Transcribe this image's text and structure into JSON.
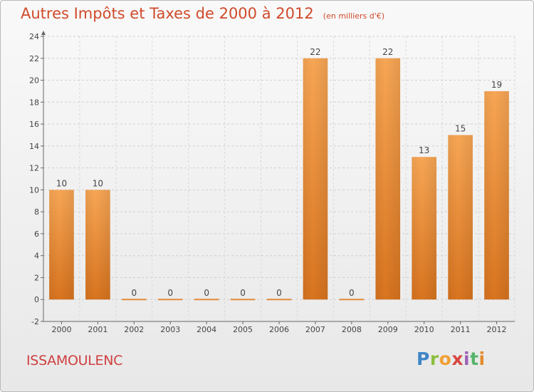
{
  "title": "Autres Impôts et Taxes de 2000 à 2012",
  "unit": "(en milliers d'€)",
  "commune": "ISSAMOULENC",
  "logo": "Proxiti",
  "colors": {
    "title": "#d04a2b",
    "bar_light": "#f7a655",
    "bar_dark": "#d8741f",
    "commune": "#cf3f3f"
  },
  "chart_data": {
    "type": "bar",
    "title": "Autres Impôts et Taxes de 2000 à 2012",
    "subtitle": "(en milliers d'€)",
    "categories": [
      "2000",
      "2001",
      "2002",
      "2003",
      "2004",
      "2005",
      "2006",
      "2007",
      "2008",
      "2009",
      "2010",
      "2011",
      "2012"
    ],
    "values": [
      10,
      10,
      0,
      0,
      0,
      0,
      0,
      22,
      0,
      22,
      13,
      15,
      19
    ],
    "ylim": [
      -2,
      24
    ],
    "yticks": [
      -2,
      0,
      2,
      4,
      6,
      8,
      10,
      12,
      14,
      16,
      18,
      20,
      22,
      24
    ],
    "grid": true,
    "legend": "none"
  }
}
